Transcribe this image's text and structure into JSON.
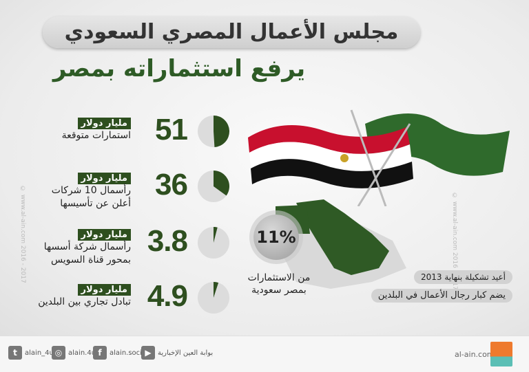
{
  "header": {
    "title": "مجلس الأعمال المصري السعودي",
    "subtitle": "يرفع استثماراته بمصر"
  },
  "stats": [
    {
      "value": "51",
      "unit": "مليار دولار",
      "desc": [
        "استمارات متوقعة"
      ],
      "fill": 0.49
    },
    {
      "value": "36",
      "unit": "مليار دولار",
      "desc": [
        "رأسمال 10 شركات",
        "أعلن عن تأسيسها"
      ],
      "fill": 0.35
    },
    {
      "value": "3.8",
      "unit": "مليار دولار",
      "desc": [
        "رأسمال شركة أسسها",
        "بمحور قناة السويس"
      ],
      "fill": 0.04
    },
    {
      "value": "4.9",
      "unit": "مليار دولار",
      "desc": [
        "تبادل تجاري بين البلدين"
      ],
      "fill": 0.05
    }
  ],
  "share": {
    "value": "11%",
    "desc": [
      "من الاستثمارات",
      "بمصر سعودية"
    ]
  },
  "facts": [
    "أعيد تشكيلة بنهاية 2013",
    "يضم كبار رجال الأعمال في البلدين"
  ],
  "watermark": "© www.al-ain.com 2016 - 2017",
  "colors": {
    "green": "#2e4f1f",
    "saudi_green": "#2f6a2c",
    "egypt_red": "#c8102e"
  },
  "footer": {
    "social": [
      {
        "icon": "twitter-icon",
        "label": "alain_4u"
      },
      {
        "icon": "instagram-icon",
        "label": "alain.4u"
      },
      {
        "icon": "facebook-icon",
        "label": "alain.social"
      },
      {
        "icon": "youtube-icon",
        "label": "بوابة العين الإخبارية"
      }
    ],
    "site": "al-ain.com"
  }
}
